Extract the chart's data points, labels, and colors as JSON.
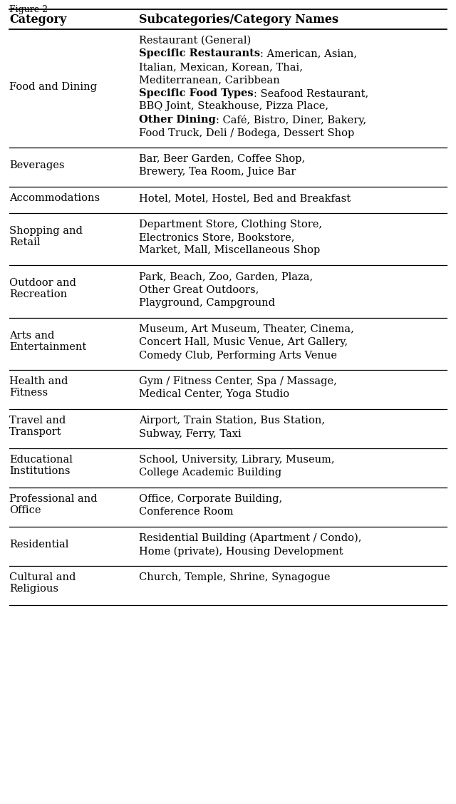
{
  "figure_label": "Figure 2",
  "header": [
    "Category",
    "Subcategories/Category Names"
  ],
  "rows": [
    {
      "category": "Food and Dining",
      "lines": [
        [
          {
            "text": "Restaurant (General)",
            "bold": false
          }
        ],
        [
          {
            "text": "Specific Restaurants",
            "bold": true
          },
          {
            "text": ": American, Asian,",
            "bold": false
          }
        ],
        [
          {
            "text": "Italian, Mexican, Korean, Thai,",
            "bold": false
          }
        ],
        [
          {
            "text": "Mediterranean, Caribbean",
            "bold": false
          }
        ],
        [
          {
            "text": "Specific Food Types",
            "bold": true
          },
          {
            "text": ": Seafood Restaurant,",
            "bold": false
          }
        ],
        [
          {
            "text": "BBQ Joint, Steakhouse, Pizza Place,",
            "bold": false
          }
        ],
        [
          {
            "text": "Other Dining",
            "bold": true
          },
          {
            "text": ": Café, Bistro, Diner, Bakery,",
            "bold": false
          }
        ],
        [
          {
            "text": "Food Truck, Deli / Bodega, Dessert Shop",
            "bold": false
          }
        ]
      ]
    },
    {
      "category": "Beverages",
      "lines": [
        [
          {
            "text": "Bar, Beer Garden, Coffee Shop,",
            "bold": false
          }
        ],
        [
          {
            "text": "Brewery, Tea Room, Juice Bar",
            "bold": false
          }
        ]
      ]
    },
    {
      "category": "Accommodations",
      "lines": [
        [
          {
            "text": "Hotel, Motel, Hostel, Bed and Breakfast",
            "bold": false
          }
        ]
      ]
    },
    {
      "category": "Shopping and\nRetail",
      "lines": [
        [
          {
            "text": "Department Store, Clothing Store,",
            "bold": false
          }
        ],
        [
          {
            "text": "Electronics Store, Bookstore,",
            "bold": false
          }
        ],
        [
          {
            "text": "Market, Mall, Miscellaneous Shop",
            "bold": false
          }
        ]
      ]
    },
    {
      "category": "Outdoor and\nRecreation",
      "lines": [
        [
          {
            "text": "Park, Beach, Zoo, Garden, Plaza,",
            "bold": false
          }
        ],
        [
          {
            "text": "Other Great Outdoors,",
            "bold": false
          }
        ],
        [
          {
            "text": "Playground, Campground",
            "bold": false
          }
        ]
      ]
    },
    {
      "category": "Arts and\nEntertainment",
      "lines": [
        [
          {
            "text": "Museum, Art Museum, Theater, Cinema,",
            "bold": false
          }
        ],
        [
          {
            "text": "Concert Hall, Music Venue, Art Gallery,",
            "bold": false
          }
        ],
        [
          {
            "text": "Comedy Club, Performing Arts Venue",
            "bold": false
          }
        ]
      ]
    },
    {
      "category": "Health and\nFitness",
      "lines": [
        [
          {
            "text": "Gym / Fitness Center, Spa / Massage,",
            "bold": false
          }
        ],
        [
          {
            "text": "Medical Center, Yoga Studio",
            "bold": false
          }
        ]
      ]
    },
    {
      "category": "Travel and\nTransport",
      "lines": [
        [
          {
            "text": "Airport, Train Station, Bus Station,",
            "bold": false
          }
        ],
        [
          {
            "text": "Subway, Ferry, Taxi",
            "bold": false
          }
        ]
      ]
    },
    {
      "category": "Educational\nInstitutions",
      "lines": [
        [
          {
            "text": "School, University, Library, Museum,",
            "bold": false
          }
        ],
        [
          {
            "text": "College Academic Building",
            "bold": false
          }
        ]
      ]
    },
    {
      "category": "Professional and\nOffice",
      "lines": [
        [
          {
            "text": "Office, Corporate Building,",
            "bold": false
          }
        ],
        [
          {
            "text": "Conference Room",
            "bold": false
          }
        ]
      ]
    },
    {
      "category": "Residential",
      "lines": [
        [
          {
            "text": "Residential Building (Apartment / Condo),",
            "bold": false
          }
        ],
        [
          {
            "text": "Home (private), Housing Development",
            "bold": false
          }
        ]
      ]
    },
    {
      "category": "Cultural and\nReligious",
      "lines": [
        [
          {
            "text": "Church, Temple, Shrine, Synagogue",
            "bold": false
          }
        ]
      ]
    }
  ],
  "font_size": 10.5,
  "header_font_size": 11.5,
  "font_family": "serif"
}
